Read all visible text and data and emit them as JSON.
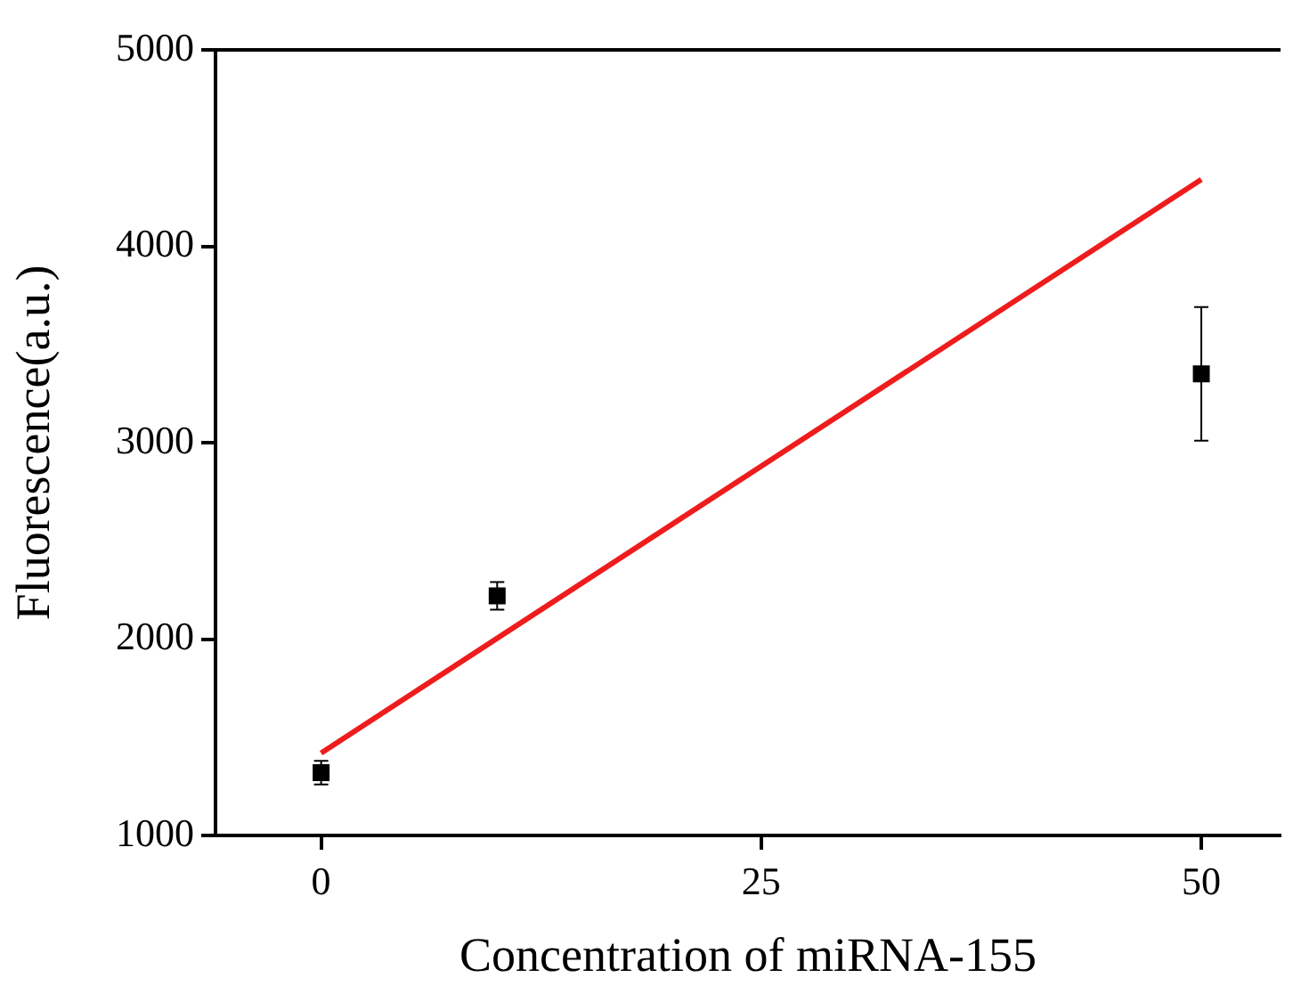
{
  "chart_data": {
    "type": "scatter",
    "xlabel": "Concentration of miRNA-155",
    "ylabel": "Fluorescence(a.u.)",
    "xlim": [
      -6,
      54.5
    ],
    "ylim": [
      1000,
      5000
    ],
    "xticks": [
      0,
      25,
      50
    ],
    "yticks": [
      1000,
      2000,
      3000,
      4000,
      5000
    ],
    "grid": false,
    "legend": false,
    "series": [
      {
        "color": "#000000",
        "marker": "square",
        "x": [
          0,
          10,
          50
        ],
        "values": [
          1320,
          2220,
          3350
        ],
        "errors": [
          60,
          70,
          340
        ]
      },
      {
        "type": "line",
        "color": "#ee1c1c",
        "marker": "none",
        "line_style": "solid",
        "x": [
          0,
          50
        ],
        "values": [
          1420,
          4340
        ]
      }
    ]
  }
}
